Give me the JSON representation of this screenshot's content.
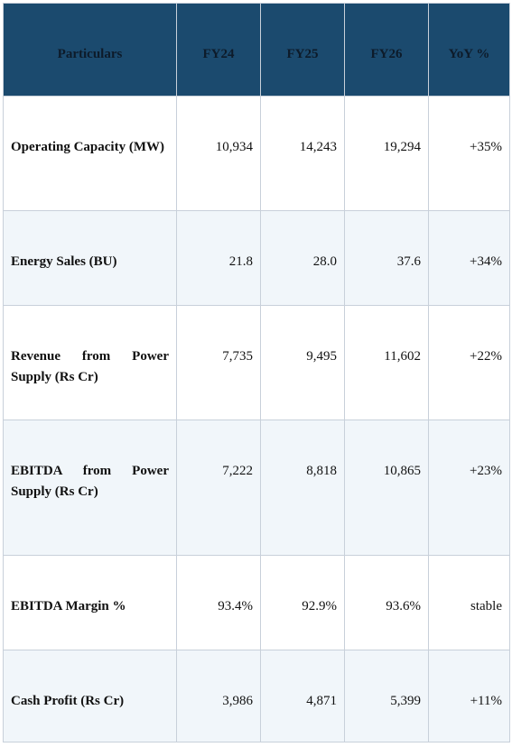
{
  "table": {
    "header": [
      "Particulars",
      "FY24",
      "FY25",
      "FY26",
      "YoY %"
    ],
    "rows": [
      [
        "Operating Capacity (MW)",
        "10,934",
        "14,243",
        "19,294",
        "+35%"
      ],
      [
        "Energy Sales (BU)",
        "21.8",
        "28.0",
        "37.6",
        "+34%"
      ],
      [
        "Revenue from Power Supply (Rs Cr)",
        "7,735",
        "9,495",
        "11,602",
        "+22%"
      ],
      [
        "EBITDA from Power Supply (Rs Cr)",
        "7,222",
        "8,818",
        "10,865",
        "+23%"
      ],
      [
        "EBITDA Margin %",
        "93.4%",
        "92.9%",
        "93.6%",
        "stable"
      ],
      [
        "Cash Profit (Rs Cr)",
        "3,986",
        "4,871",
        "5,399",
        "+11%"
      ]
    ]
  }
}
